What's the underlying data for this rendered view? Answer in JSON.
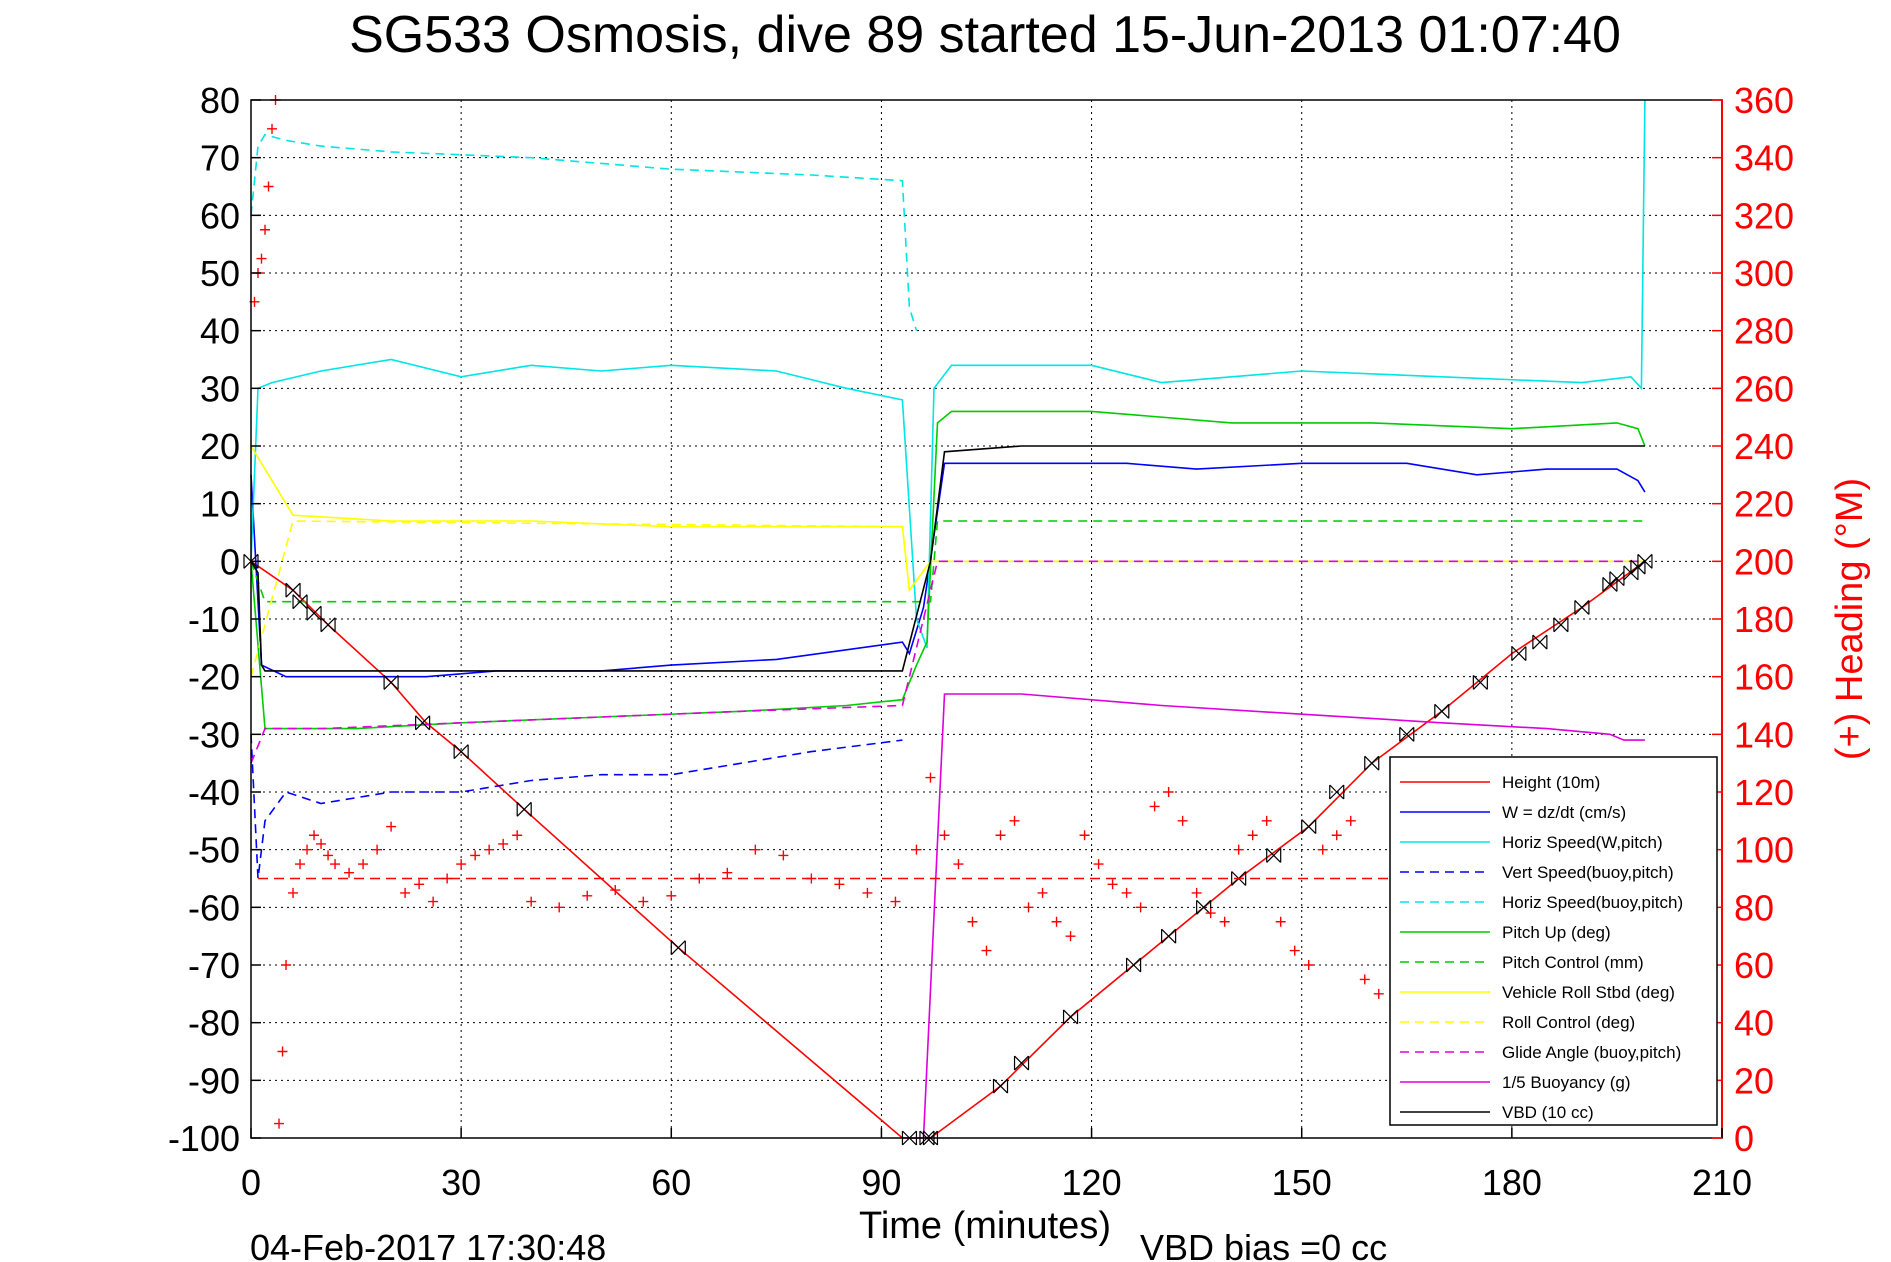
{
  "chart_data": {
    "type": "line",
    "title": "SG533 Osmosis, dive 89 started 15-Jun-2013 01:07:40",
    "xlabel": "Time (minutes)",
    "ylabel_right": "(+) Heading (°M)",
    "footer_date": "04-Feb-2017 17:30:48",
    "footer_note": "VBD bias =0 cc",
    "xlim": [
      0,
      210
    ],
    "ylim": [
      -100,
      80
    ],
    "y2lim": [
      0,
      360
    ],
    "xticks": [
      "0",
      "30",
      "60",
      "90",
      "120",
      "150",
      "180",
      "210"
    ],
    "yticks": [
      "80",
      "70",
      "60",
      "50",
      "40",
      "30",
      "20",
      "10",
      "0",
      "-10",
      "-20",
      "-30",
      "-40",
      "-50",
      "-60",
      "-70",
      "-80",
      "-90",
      "-100"
    ],
    "y2ticks": [
      "360",
      "340",
      "320",
      "300",
      "280",
      "260",
      "240",
      "220",
      "200",
      "180",
      "160",
      "140",
      "120",
      "100",
      "80",
      "60",
      "40",
      "20",
      "0"
    ],
    "grid": true,
    "legend_position": "bottom-right",
    "colors": {
      "axis": "#000000",
      "right_axis": "#ff0000"
    },
    "series": [
      {
        "name": "Height (10m)",
        "color": "#ff0000",
        "dash": "solid",
        "x": [
          0,
          6,
          11,
          20,
          25,
          30,
          39,
          61,
          93,
          97,
          107,
          117,
          131,
          141,
          151,
          160,
          170,
          180,
          190,
          199
        ],
        "y": [
          0,
          -5,
          -11,
          -21,
          -28,
          -33,
          -43,
          -67,
          -100,
          -100,
          -91,
          -79,
          -65,
          -55,
          -46,
          -35,
          -26,
          -16,
          -8,
          0
        ]
      },
      {
        "name": "W = dz/dt (cm/s)",
        "color": "#0000ff",
        "dash": "solid",
        "x": [
          0,
          1.5,
          5,
          15,
          25,
          35,
          50,
          60,
          75,
          93,
          94,
          96,
          99,
          110,
          125,
          135,
          150,
          165,
          175,
          185,
          195,
          198,
          199
        ],
        "y": [
          15,
          -18,
          -20,
          -20,
          -20,
          -19,
          -19,
          -18,
          -17,
          -14,
          -16,
          -8,
          17,
          17,
          17,
          16,
          17,
          17,
          15,
          16,
          16,
          14,
          12
        ]
      },
      {
        "name": "Horiz Speed(W,pitch)",
        "color": "#00e5e5",
        "dash": "solid",
        "x": [
          0,
          1,
          3,
          10,
          20,
          30,
          40,
          50,
          60,
          75,
          85,
          93,
          95,
          96.5,
          97.5,
          100,
          120,
          130,
          150,
          170,
          190,
          197,
          198.5,
          199
        ],
        "y": [
          0,
          30,
          31,
          33,
          35,
          32,
          34,
          33,
          34,
          33,
          30,
          28,
          -10,
          -15,
          30,
          34,
          34,
          31,
          33,
          32,
          31,
          32,
          30,
          80
        ]
      },
      {
        "name": "Vert Speed(buoy,pitch)",
        "color": "#0000ff",
        "dash": "dash",
        "x": [
          0,
          1,
          2,
          5,
          10,
          20,
          30,
          40,
          50,
          60,
          70,
          80,
          93
        ],
        "y": [
          -30,
          -55,
          -45,
          -40,
          -42,
          -40,
          -40,
          -38,
          -37,
          -37,
          -35,
          -33,
          -31
        ]
      },
      {
        "name": "Horiz Speed(buoy,pitch)",
        "color": "#00e5e5",
        "dash": "dash",
        "x": [
          0,
          1,
          2,
          5,
          10,
          20,
          40,
          60,
          80,
          93,
          94,
          95
        ],
        "y": [
          60,
          72,
          74,
          73,
          72,
          71,
          70,
          68,
          67,
          66,
          44,
          40
        ]
      },
      {
        "name": "Pitch Up (deg)",
        "color": "#00cc00",
        "dash": "solid",
        "x": [
          0,
          2,
          5,
          15,
          30,
          50,
          70,
          85,
          93,
          95,
          96.5,
          98,
          100,
          120,
          140,
          160,
          180,
          195,
          198,
          199
        ],
        "y": [
          0,
          -29,
          -29,
          -29,
          -28,
          -27,
          -26,
          -25,
          -24,
          -18,
          -14,
          24,
          26,
          26,
          24,
          24,
          23,
          24,
          23,
          20
        ]
      },
      {
        "name": "Pitch Control (mm)",
        "color": "#00cc00",
        "dash": "dash",
        "x": [
          0,
          2,
          93,
          97,
          98,
          199
        ],
        "y": [
          0,
          -7,
          -7,
          -7,
          7,
          7
        ]
      },
      {
        "name": "Vehicle Roll Stbd (deg)",
        "color": "#ffff00",
        "dash": "solid",
        "x": [
          0,
          6,
          20,
          40,
          60,
          80,
          93,
          94,
          97,
          99,
          120,
          140,
          160,
          180,
          199
        ],
        "y": [
          20,
          8,
          7,
          7,
          6,
          6,
          6,
          -5,
          0,
          0,
          0,
          0,
          0,
          0,
          0
        ]
      },
      {
        "name": "Roll Control (deg)",
        "color": "#ffff00",
        "dash": "dash",
        "x": [
          0,
          6,
          93,
          94,
          97,
          199
        ],
        "y": [
          -20,
          7,
          6,
          -5,
          0,
          0
        ]
      },
      {
        "name": "Glide Angle (buoy,pitch)",
        "color": "#dd00dd",
        "dash": "dash",
        "x": [
          0,
          2,
          10,
          30,
          50,
          70,
          93,
          96,
          98,
          120,
          150,
          180,
          199
        ],
        "y": [
          -35,
          -29,
          -29,
          -28,
          -27,
          -26,
          -25,
          -10,
          0,
          0,
          0,
          0,
          0
        ]
      },
      {
        "name": "1/5 Buoyancy (g)",
        "color": "#dd00dd",
        "dash": "solid",
        "x": [
          93,
          96,
          99,
          110,
          130,
          150,
          170,
          185,
          194,
          196,
          199
        ],
        "y": [
          -100,
          -100,
          -23,
          -23,
          -25,
          -26.5,
          -28,
          -29,
          -30,
          -31,
          -31
        ]
      },
      {
        "name": "VBD (10 cc)",
        "color": "#000000",
        "dash": "solid",
        "x": [
          0,
          1,
          1.5,
          2,
          93,
          97,
          99,
          110,
          199
        ],
        "y": [
          0,
          -2,
          -18,
          -19,
          -19,
          0,
          19,
          20,
          20
        ]
      }
    ],
    "heading": {
      "name": "Heading (°M)",
      "axis": "right",
      "color": "#ff0000",
      "marker": "+",
      "reference_value": 90,
      "x": [
        0.5,
        1,
        1.5,
        2,
        2.5,
        3,
        3.5,
        4,
        4.5,
        5,
        6,
        7,
        8,
        9,
        10,
        11,
        12,
        14,
        16,
        18,
        20,
        22,
        24,
        26,
        28,
        30,
        32,
        34,
        36,
        38,
        40,
        44,
        48,
        52,
        56,
        60,
        64,
        68,
        72,
        76,
        80,
        84,
        88,
        92,
        95,
        97,
        99,
        101,
        103,
        105,
        107,
        109,
        111,
        113,
        115,
        117,
        119,
        121,
        123,
        125,
        127,
        129,
        131,
        133,
        135,
        137,
        139,
        141,
        143,
        145,
        147,
        149,
        151,
        153,
        155,
        157,
        159,
        161
      ],
      "y": [
        290,
        300,
        305,
        315,
        330,
        350,
        360,
        5,
        30,
        60,
        85,
        95,
        100,
        105,
        102,
        98,
        95,
        92,
        95,
        100,
        108,
        85,
        88,
        82,
        90,
        95,
        98,
        100,
        102,
        105,
        82,
        80,
        84,
        86,
        82,
        84,
        90,
        92,
        100,
        98,
        90,
        88,
        85,
        82,
        100,
        125,
        105,
        95,
        75,
        65,
        105,
        110,
        80,
        85,
        75,
        70,
        105,
        95,
        88,
        85,
        80,
        115,
        120,
        110,
        85,
        78,
        75,
        100,
        105,
        110,
        75,
        65,
        60,
        100,
        105,
        110,
        55,
        50
      ]
    },
    "markers": {
      "x": [
        0,
        6,
        7,
        9,
        11,
        20,
        24.5,
        30,
        39,
        61,
        94,
        96.5,
        97,
        107,
        110,
        117,
        126,
        131,
        136,
        141,
        146,
        151,
        155,
        160,
        165,
        170,
        175.5,
        181,
        184,
        187,
        190,
        194,
        195,
        197,
        198,
        199
      ],
      "y": [
        0,
        -5,
        -7,
        -9,
        -11,
        -21,
        -28,
        -33,
        -43,
        -67,
        -100,
        -100,
        -100,
        -91,
        -87,
        -79,
        -70,
        -65,
        -60,
        -55,
        -51,
        -46,
        -40,
        -35,
        -30,
        -26,
        -21,
        -16,
        -14,
        -11,
        -8,
        -4,
        -3,
        -2,
        -1,
        0
      ]
    }
  },
  "legend": {
    "items": [
      "Height (10m)",
      "W = dz/dt (cm/s)",
      "Horiz Speed(W,pitch)",
      "Vert Speed(buoy,pitch)",
      "Horiz Speed(buoy,pitch)",
      "Pitch Up (deg)",
      "Pitch Control (mm)",
      "Vehicle Roll Stbd (deg)",
      "Roll Control (deg)",
      "Glide Angle (buoy,pitch)",
      "1/5 Buoyancy (g)",
      "VBD (10 cc)"
    ]
  }
}
